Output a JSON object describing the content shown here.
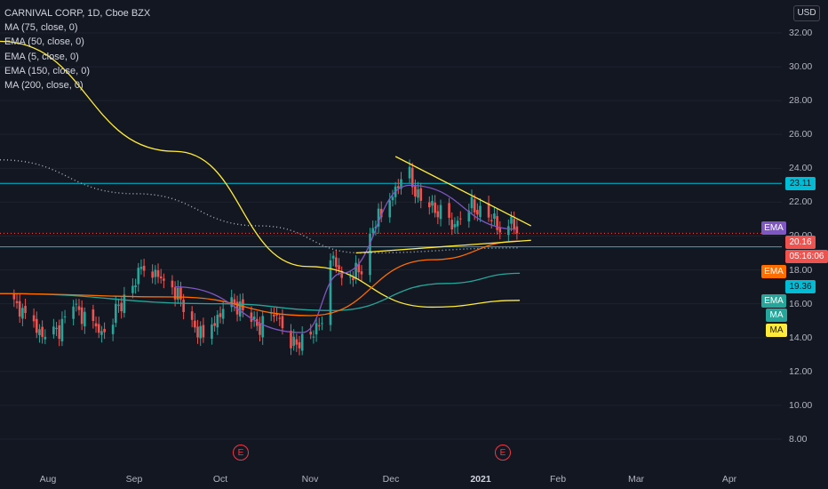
{
  "legend": {
    "title": "CARNIVAL CORP, 1D, Cboe BZX",
    "indicators": [
      "MA (75, close, 0)",
      "EMA (50, close, 0)",
      "EMA (5, close, 0)",
      "EMA (150, close, 0)",
      "MA (200, close, 0)"
    ]
  },
  "currency": "USD",
  "colors": {
    "background": "#131722",
    "up": "#26a69a",
    "down": "#ef5350",
    "horizontal_line": "#00bcd4",
    "trendline": "#ffeb3b",
    "ema50": "#ff6d00",
    "ema5": "#7e57c2",
    "ema150": "#26a69a",
    "ma200": "#ffeb3b",
    "ma75": "#b2b5be"
  },
  "price_badges": {
    "ema_purple": "EMA",
    "last_price": "20.16",
    "countdown": "05:16:06",
    "ema_orange": "EMA",
    "level_low": "19.36",
    "level_high": "23.11",
    "ema_green": "EMA",
    "ma_teal": "MA",
    "ma_yellow": "MA"
  },
  "earnings_marker": "E",
  "chart_data": {
    "type": "candlestick",
    "symbol": "CARNIVAL CORP",
    "interval": "1D",
    "exchange": "Cboe BZX",
    "y_ticks": [
      "32.00",
      "30.00",
      "28.00",
      "26.00",
      "24.00",
      "22.00",
      "20.00",
      "18.00",
      "16.00",
      "14.00",
      "12.00",
      "10.00",
      "8.00"
    ],
    "x_ticks": [
      "Aug",
      "Sep",
      "Oct",
      "Nov",
      "Dec",
      "2021",
      "Feb",
      "Mar",
      "Apr"
    ],
    "horizontal_levels": [
      23.11,
      19.36
    ],
    "close_series": [
      [
        "2020-07-20",
        16.2
      ],
      [
        "2020-07-23",
        15.4
      ],
      [
        "2020-07-28",
        14.6
      ],
      [
        "2020-07-31",
        13.9
      ],
      [
        "2020-08-05",
        14.5
      ],
      [
        "2020-08-10",
        16.0
      ],
      [
        "2020-08-14",
        15.1
      ],
      [
        "2020-08-20",
        14.3
      ],
      [
        "2020-08-26",
        15.8
      ],
      [
        "2020-08-31",
        17.0
      ],
      [
        "2020-09-04",
        18.5
      ],
      [
        "2020-09-09",
        17.6
      ],
      [
        "2020-09-15",
        16.8
      ],
      [
        "2020-09-22",
        14.6
      ],
      [
        "2020-09-25",
        14.0
      ],
      [
        "2020-09-30",
        15.2
      ],
      [
        "2020-10-06",
        16.0
      ],
      [
        "2020-10-09",
        15.6
      ],
      [
        "2020-10-15",
        14.6
      ],
      [
        "2020-10-21",
        15.4
      ],
      [
        "2020-10-27",
        13.5
      ],
      [
        "2020-10-30",
        13.9
      ],
      [
        "2020-11-04",
        14.4
      ],
      [
        "2020-11-06",
        15.3
      ],
      [
        "2020-11-09",
        18.9
      ],
      [
        "2020-11-13",
        17.6
      ],
      [
        "2020-11-20",
        18.0
      ],
      [
        "2020-11-24",
        20.6
      ],
      [
        "2020-11-27",
        21.3
      ],
      [
        "2020-12-02",
        22.8
      ],
      [
        "2020-12-07",
        23.5
      ],
      [
        "2020-12-10",
        22.3
      ],
      [
        "2020-12-16",
        21.6
      ],
      [
        "2020-12-22",
        20.5
      ],
      [
        "2020-12-28",
        21.8
      ],
      [
        "2021-01-04",
        21.2
      ],
      [
        "2021-01-08",
        20.5
      ],
      [
        "2021-01-12",
        20.9
      ],
      [
        "2021-01-14",
        20.16
      ]
    ],
    "ema5": [
      [
        "2020-09-15",
        17.0
      ],
      [
        "2020-10-30",
        14.3
      ],
      [
        "2020-11-13",
        17.8
      ],
      [
        "2020-12-07",
        23.0
      ],
      [
        "2021-01-14",
        20.4
      ]
    ],
    "ema50": [
      [
        "2020-07-15",
        16.6
      ],
      [
        "2020-09-15",
        16.4
      ],
      [
        "2020-11-02",
        15.3
      ],
      [
        "2020-12-15",
        18.6
      ],
      [
        "2021-01-15",
        19.7
      ]
    ],
    "ema150": [
      [
        "2020-07-15",
        16.6
      ],
      [
        "2020-10-01",
        16.0
      ],
      [
        "2020-11-10",
        15.6
      ],
      [
        "2020-12-20",
        17.2
      ],
      [
        "2021-01-15",
        17.8
      ]
    ],
    "ma75": [
      [
        "2020-07-15",
        24.5
      ],
      [
        "2020-09-01",
        22.5
      ],
      [
        "2020-10-15",
        20.6
      ],
      [
        "2020-11-20",
        19.0
      ],
      [
        "2021-01-15",
        19.3
      ]
    ],
    "ma200": [
      [
        "2020-07-15",
        31.5
      ],
      [
        "2020-09-15",
        25.0
      ],
      [
        "2020-11-01",
        18.2
      ],
      [
        "2020-12-15",
        15.8
      ],
      [
        "2021-01-15",
        16.2
      ]
    ],
    "trendlines": [
      {
        "from": [
          "2020-12-02",
          24.7
        ],
        "to": [
          "2021-01-19",
          20.6
        ]
      },
      {
        "from": [
          "2020-11-18",
          19.0
        ],
        "to": [
          "2021-01-19",
          19.75
        ]
      }
    ],
    "earnings_dates": [
      "2020-09-30",
      "2021-01-13"
    ]
  }
}
